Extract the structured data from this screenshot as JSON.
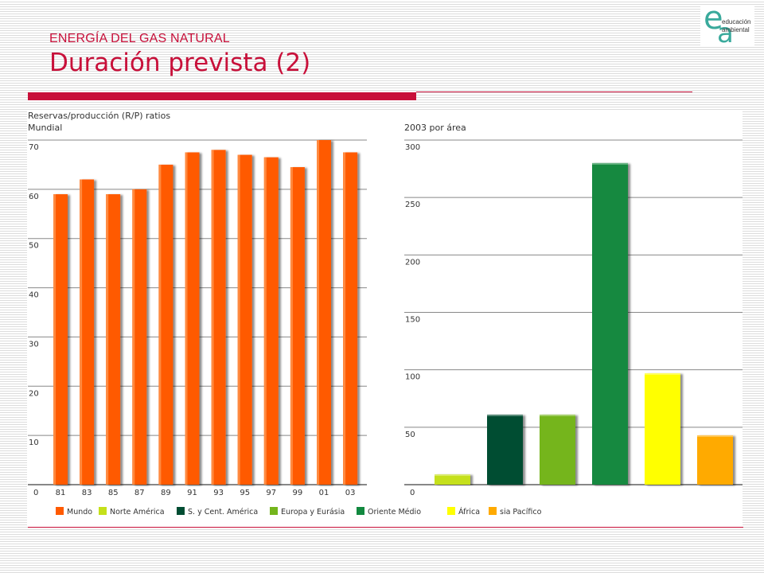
{
  "header": {
    "kicker": "ENERGÍA DEL GAS NATURAL",
    "title": "Duración prevista (2)"
  },
  "logo": {
    "letter_e": "e",
    "letter_a": "a",
    "line1": "educación",
    "line2": "ambiental",
    "color": "#3aaa9c"
  },
  "colors": {
    "accent": "#c8103a",
    "orange_bar": "#ff5a00",
    "grid": "#888888"
  },
  "chart_data": [
    {
      "type": "bar",
      "title": "Reservas/producción (R/P) ratios",
      "subtitle": "Mundial",
      "categories": [
        "81",
        "83",
        "85",
        "87",
        "89",
        "91",
        "93",
        "95",
        "97",
        "99",
        "01",
        "03"
      ],
      "values": [
        59,
        62,
        59,
        60,
        65,
        67.5,
        68,
        67,
        66.5,
        64.5,
        70,
        67.5
      ],
      "ylim": [
        0,
        70
      ],
      "yticks": [
        0,
        10,
        20,
        30,
        40,
        50,
        60,
        70
      ],
      "color": "#ff5a00",
      "grid": true
    },
    {
      "type": "bar",
      "title": "2003 por área",
      "categories": [
        "Norte América",
        "S. y Cent. América",
        "Europa y Eurásia",
        "Oriente Médio",
        "África",
        "sia Pacífico"
      ],
      "values": [
        9,
        61,
        61,
        280,
        97,
        43
      ],
      "colors": [
        "#c5e01a",
        "#004d33",
        "#74b51c",
        "#12893f",
        "#ffff00",
        "#ffaa00"
      ],
      "ylim": [
        0,
        300
      ],
      "yticks": [
        0,
        50,
        100,
        150,
        200,
        250,
        300
      ],
      "grid": true
    }
  ],
  "legend": [
    {
      "label": "Mundo",
      "color": "#ff5a00"
    },
    {
      "label": "Norte América",
      "color": "#c5e01a"
    },
    {
      "label": "S. y Cent. América",
      "color": "#004d33"
    },
    {
      "label": "Europa y Eurásia",
      "color": "#74b51c"
    },
    {
      "label": "Oriente Médio",
      "color": "#12893f"
    },
    {
      "label": "África",
      "color": "#ffff00"
    },
    {
      "label": "sia Pacífico",
      "color": "#ffaa00"
    }
  ]
}
